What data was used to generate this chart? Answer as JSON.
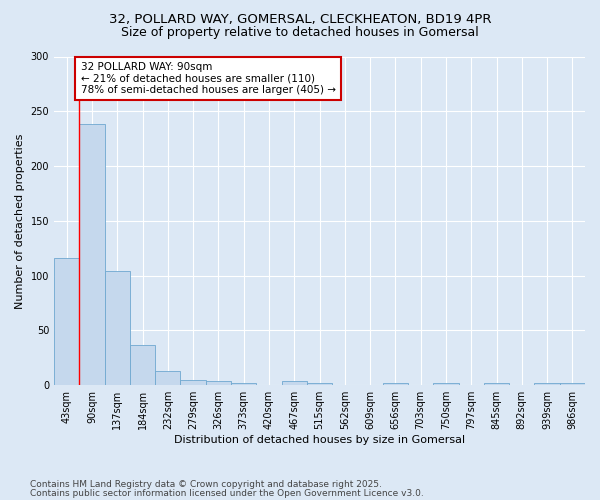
{
  "title_line1": "32, POLLARD WAY, GOMERSAL, CLECKHEATON, BD19 4PR",
  "title_line2": "Size of property relative to detached houses in Gomersal",
  "xlabel": "Distribution of detached houses by size in Gomersal",
  "ylabel": "Number of detached properties",
  "categories": [
    "43sqm",
    "90sqm",
    "137sqm",
    "184sqm",
    "232sqm",
    "279sqm",
    "326sqm",
    "373sqm",
    "420sqm",
    "467sqm",
    "515sqm",
    "562sqm",
    "609sqm",
    "656sqm",
    "703sqm",
    "750sqm",
    "797sqm",
    "845sqm",
    "892sqm",
    "939sqm",
    "986sqm"
  ],
  "values": [
    116,
    238,
    104,
    37,
    13,
    5,
    4,
    2,
    0,
    4,
    2,
    0,
    0,
    2,
    0,
    2,
    0,
    2,
    0,
    2,
    2
  ],
  "bar_color": "#c5d8ed",
  "bar_edge_color": "#6fa8d0",
  "red_line_x": 0.5,
  "annotation_text": "32 POLLARD WAY: 90sqm\n← 21% of detached houses are smaller (110)\n78% of semi-detached houses are larger (405) →",
  "annotation_box_facecolor": "#ffffff",
  "annotation_box_edgecolor": "#cc0000",
  "ylim": [
    0,
    300
  ],
  "yticks": [
    0,
    50,
    100,
    150,
    200,
    250,
    300
  ],
  "footnote1": "Contains HM Land Registry data © Crown copyright and database right 2025.",
  "footnote2": "Contains public sector information licensed under the Open Government Licence v3.0.",
  "bg_color": "#dce8f5",
  "plot_bg_color": "#dce8f5",
  "title_fontsize": 9.5,
  "axis_label_fontsize": 8,
  "tick_fontsize": 7,
  "annotation_fontsize": 7.5,
  "footnote_fontsize": 6.5,
  "ylabel_fontsize": 8
}
